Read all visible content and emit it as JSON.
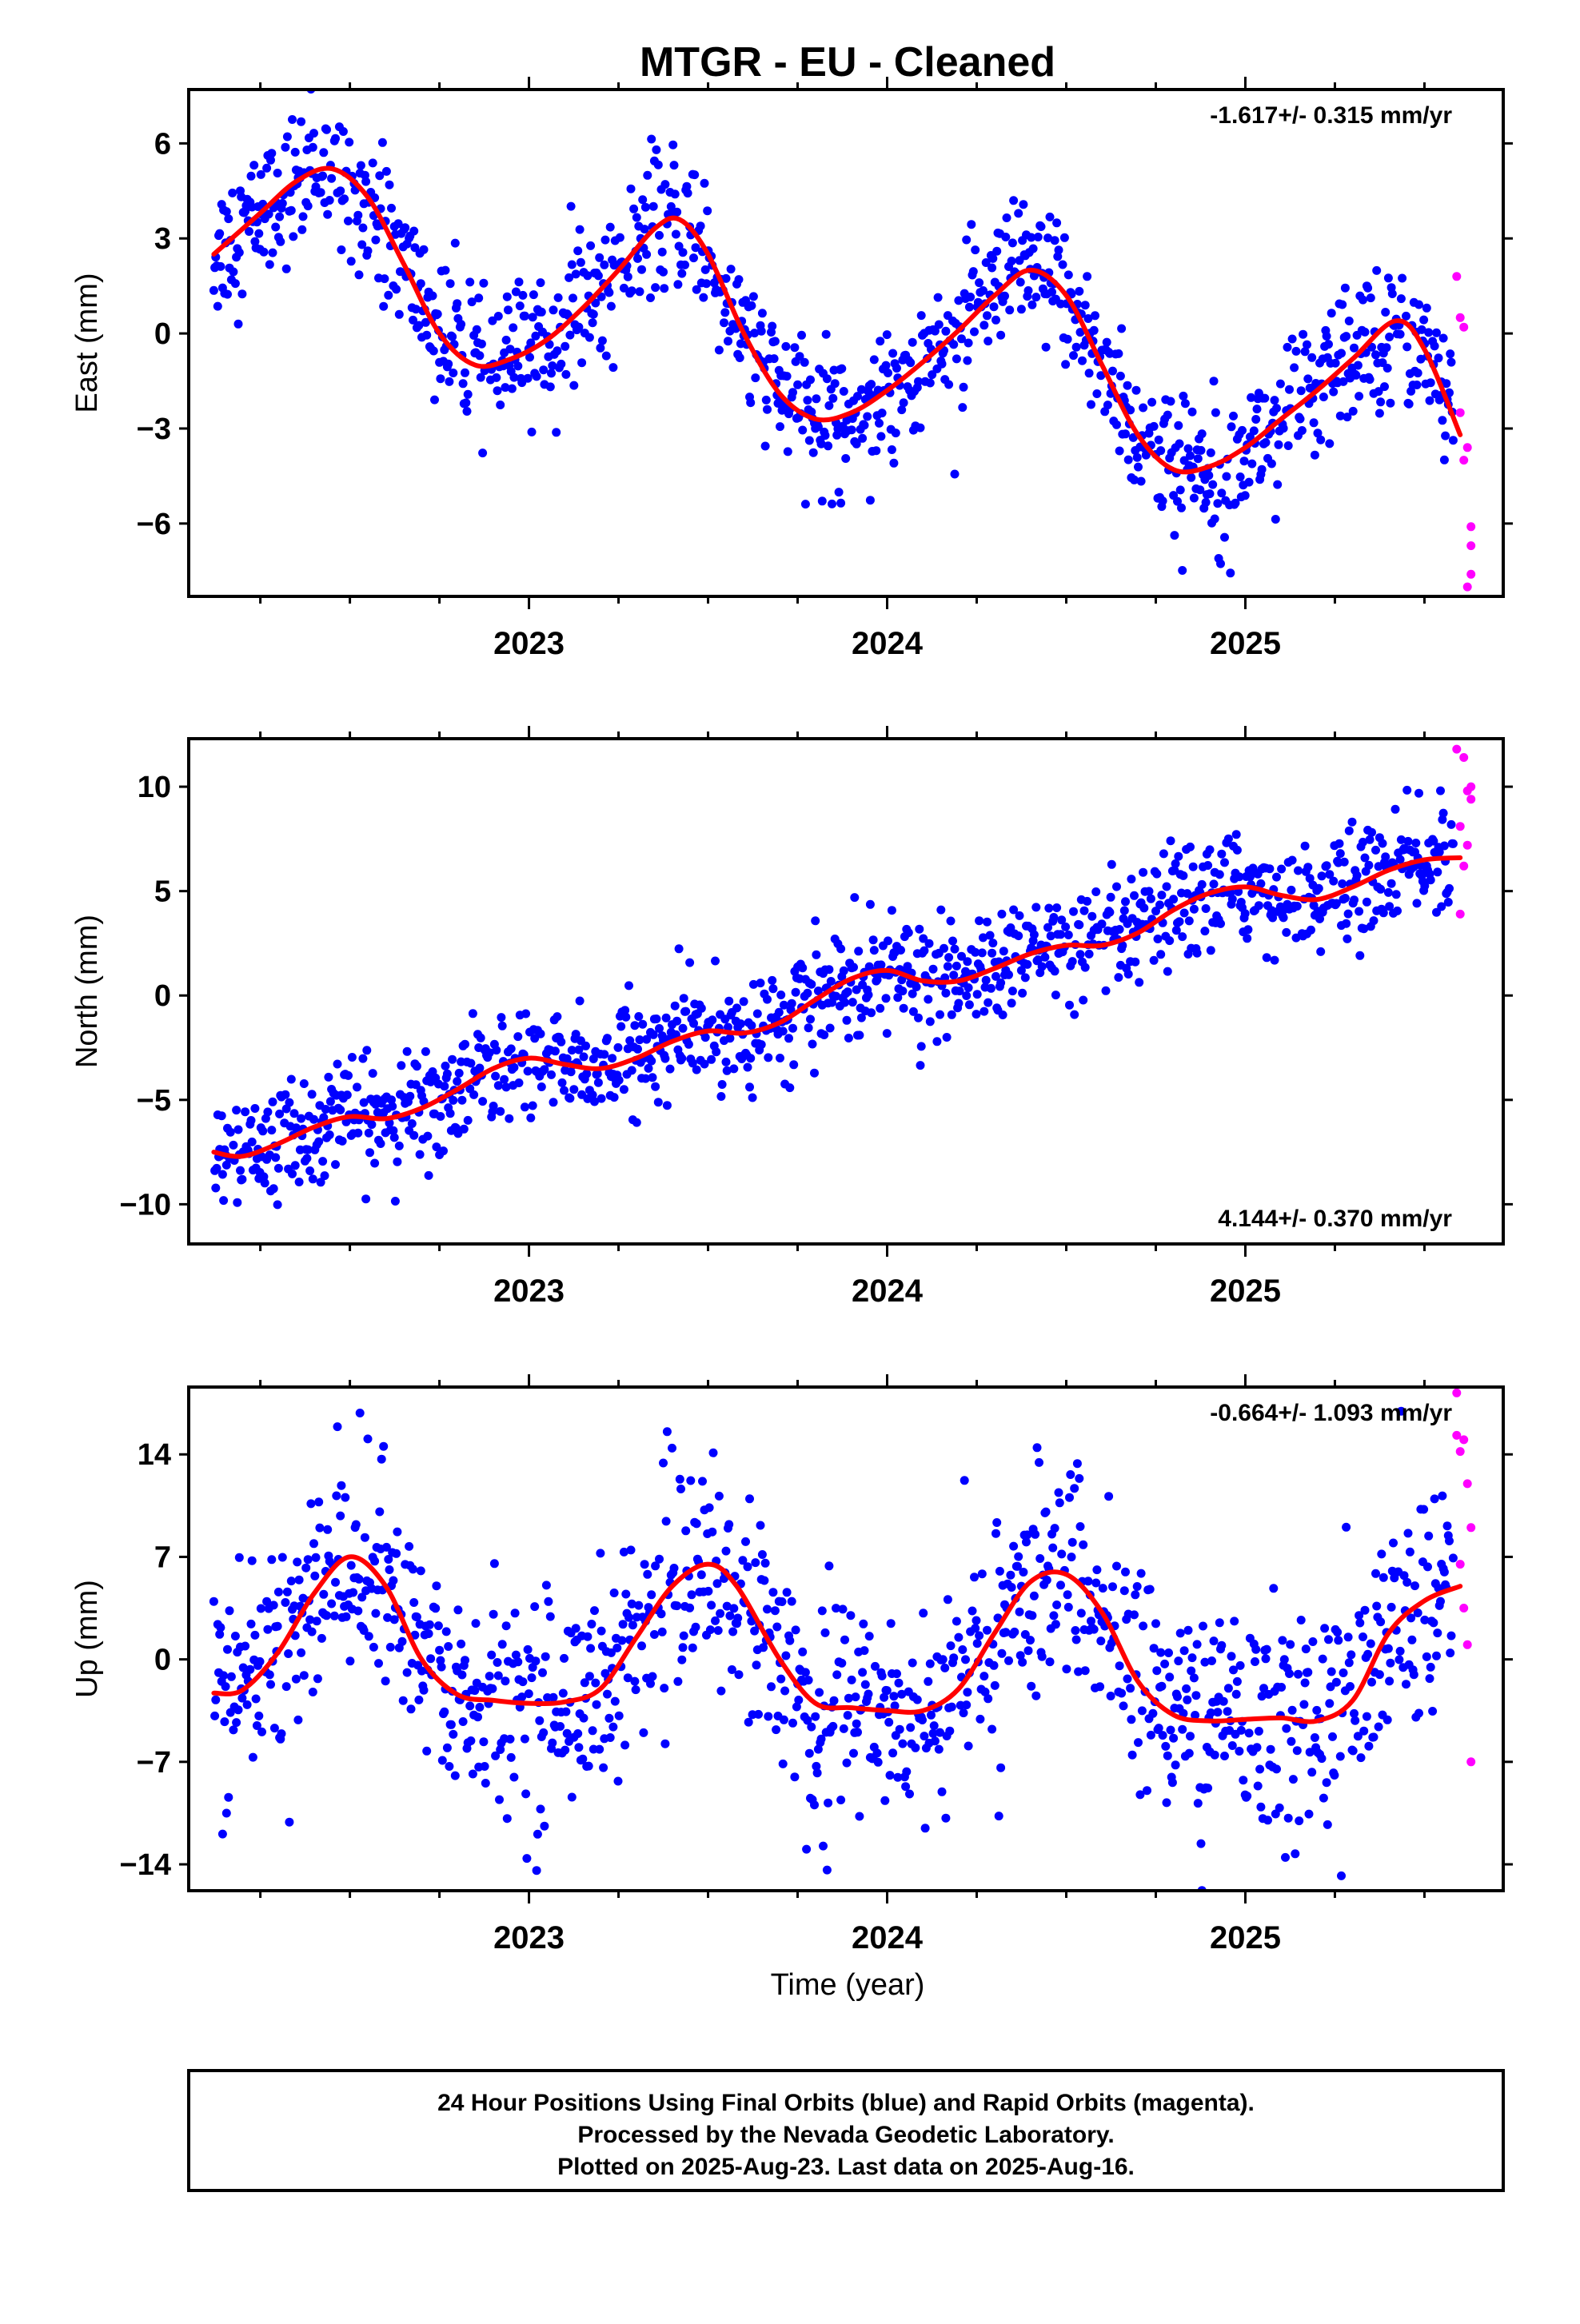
{
  "title": "MTGR  - EU - Cleaned",
  "xlabel": "Time (year)",
  "caption": [
    "24 Hour Positions Using Final Orbits (blue) and Rapid Orbits (magenta).",
    "Processed by the Nevada Geodetic Laboratory.",
    "Plotted on 2025-Aug-23. Last data on 2025-Aug-16."
  ],
  "colors": {
    "final": "#0000ff",
    "rapid": "#ff00ff",
    "model": "#ff0000",
    "frame": "#000000"
  },
  "chart_data": [
    {
      "type": "scatter",
      "component": "east",
      "ylabel": "East (mm)",
      "rate": "-1.617+/- 0.315 mm/yr",
      "rate_placement": "top-right",
      "xlim": [
        2022.05,
        2025.72
      ],
      "ylim": [
        -8.3,
        7.7
      ],
      "x_ticks": [
        "2023",
        "2024",
        "2025"
      ],
      "y_ticks": [
        "6",
        "3",
        "0",
        "-3",
        "-6"
      ],
      "model_curve": {
        "x": [
          2022.12,
          2022.25,
          2022.35,
          2022.45,
          2022.55,
          2022.65,
          2022.75,
          2022.85,
          2022.95,
          2023.05,
          2023.15,
          2023.25,
          2023.35,
          2023.42,
          2023.5,
          2023.6,
          2023.7,
          2023.8,
          2023.9,
          2024.0,
          2024.1,
          2024.2,
          2024.3,
          2024.4,
          2024.5,
          2024.6,
          2024.7,
          2024.8,
          2024.9,
          2025.0,
          2025.1,
          2025.2,
          2025.3,
          2025.42,
          2025.5,
          2025.6
        ],
        "y": [
          2.5,
          3.8,
          4.8,
          5.2,
          4.3,
          2.2,
          0.0,
          -1.0,
          -0.8,
          -0.2,
          0.8,
          2.0,
          3.3,
          3.6,
          2.5,
          0.0,
          -1.9,
          -2.7,
          -2.5,
          -1.8,
          -0.9,
          0.1,
          1.2,
          2.0,
          1.2,
          -1.0,
          -3.2,
          -4.3,
          -4.2,
          -3.6,
          -2.7,
          -1.8,
          -0.8,
          0.4,
          -0.5,
          -3.2
        ]
      },
      "rapid_points": {
        "x": [
          2025.59,
          2025.6,
          2025.6,
          2025.61,
          2025.61,
          2025.62,
          2025.62,
          2025.63,
          2025.63,
          2025.63
        ],
        "y": [
          1.8,
          0.5,
          -2.5,
          0.2,
          -4.0,
          -3.6,
          -8.0,
          -6.7,
          -6.1,
          -7.6
        ]
      },
      "final_points": {
        "note_sampling": "daily",
        "x_range": [
          2022.12,
          2025.58
        ]
      }
    },
    {
      "type": "scatter",
      "component": "north",
      "ylabel": "North (mm)",
      "rate": "4.144+/- 0.370 mm/yr",
      "rate_placement": "bottom-right",
      "xlim": [
        2022.05,
        2025.72
      ],
      "ylim": [
        -11.9,
        12.3
      ],
      "x_ticks": [
        "2023",
        "2024",
        "2025"
      ],
      "y_ticks": [
        "10",
        "5",
        "0",
        "-5",
        "-10"
      ],
      "model_curve": {
        "x": [
          2022.12,
          2022.2,
          2022.3,
          2022.4,
          2022.5,
          2022.6,
          2022.7,
          2022.8,
          2022.9,
          2023.0,
          2023.1,
          2023.2,
          2023.3,
          2023.4,
          2023.5,
          2023.6,
          2023.7,
          2023.8,
          2023.9,
          2024.0,
          2024.1,
          2024.2,
          2024.3,
          2024.4,
          2024.5,
          2024.6,
          2024.7,
          2024.8,
          2024.9,
          2025.0,
          2025.1,
          2025.2,
          2025.3,
          2025.4,
          2025.5,
          2025.6
        ],
        "y": [
          -7.5,
          -7.7,
          -7.1,
          -6.3,
          -5.8,
          -5.9,
          -5.4,
          -4.5,
          -3.5,
          -3.0,
          -3.3,
          -3.5,
          -3.0,
          -2.2,
          -1.7,
          -1.8,
          -1.3,
          -0.2,
          0.8,
          1.2,
          0.7,
          0.7,
          1.3,
          2.0,
          2.4,
          2.4,
          3.0,
          4.1,
          4.9,
          5.2,
          4.8,
          4.6,
          5.2,
          6.0,
          6.5,
          6.6
        ]
      },
      "rapid_points": {
        "x": [
          2025.59,
          2025.6,
          2025.6,
          2025.61,
          2025.61,
          2025.62,
          2025.62,
          2025.63,
          2025.63
        ],
        "y": [
          11.8,
          8.1,
          3.9,
          6.2,
          11.4,
          7.2,
          9.8,
          9.4,
          10.0
        ]
      },
      "final_points": {
        "note_sampling": "daily",
        "x_range": [
          2022.12,
          2025.58
        ]
      }
    },
    {
      "type": "scatter",
      "component": "up",
      "ylabel": "Up (mm)",
      "rate": "-0.664+/- 1.093 mm/yr",
      "rate_placement": "top-right",
      "xlim": [
        2022.05,
        2025.72
      ],
      "ylim": [
        -15.8,
        18.6
      ],
      "x_ticks": [
        "2023",
        "2024",
        "2025"
      ],
      "y_ticks": [
        "14",
        "7",
        "0",
        "-7",
        "-14"
      ],
      "model_curve": {
        "x": [
          2022.12,
          2022.2,
          2022.3,
          2022.4,
          2022.5,
          2022.6,
          2022.7,
          2022.8,
          2022.9,
          2023.0,
          2023.1,
          2023.2,
          2023.3,
          2023.4,
          2023.5,
          2023.58,
          2023.7,
          2023.8,
          2023.9,
          2024.0,
          2024.1,
          2024.2,
          2024.3,
          2024.4,
          2024.5,
          2024.6,
          2024.7,
          2024.8,
          2024.9,
          2025.0,
          2025.1,
          2025.2,
          2025.3,
          2025.4,
          2025.5,
          2025.6
        ],
        "y": [
          -2.3,
          -2.1,
          0.5,
          4.5,
          7.0,
          5.0,
          0.0,
          -2.4,
          -2.8,
          -3.0,
          -2.9,
          -2.0,
          1.5,
          5.0,
          6.5,
          5.0,
          0.0,
          -3.0,
          -3.3,
          -3.5,
          -3.5,
          -2.0,
          1.8,
          5.3,
          5.8,
          3.2,
          -1.5,
          -3.8,
          -4.2,
          -4.1,
          -4.0,
          -4.2,
          -2.8,
          1.8,
          4.0,
          5.0
        ]
      },
      "rapid_points": {
        "x": [
          2025.59,
          2025.59,
          2025.6,
          2025.6,
          2025.61,
          2025.61,
          2025.62,
          2025.62,
          2025.63,
          2025.63
        ],
        "y": [
          18.2,
          15.3,
          14.2,
          6.5,
          15.0,
          3.5,
          12.0,
          1.0,
          9.0,
          -7.0
        ]
      },
      "final_points": {
        "note_sampling": "daily",
        "x_range": [
          2022.12,
          2025.58
        ]
      }
    }
  ]
}
